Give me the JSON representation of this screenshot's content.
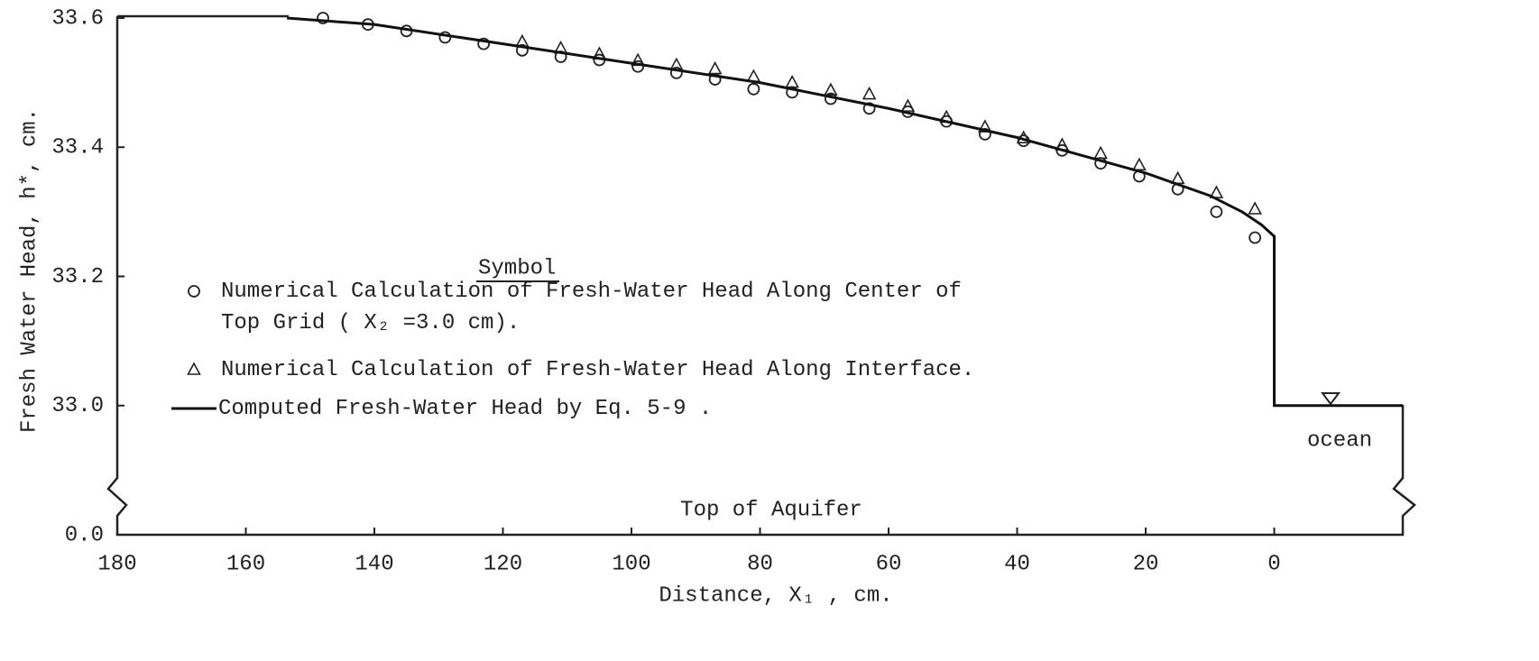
{
  "chart_data": {
    "type": "scatter",
    "x_label": "Distance, X₁ , cm.",
    "y_label": "Fresh Water Head, h*, cm.",
    "legend_title": "Symbol",
    "annotations": [
      "Top of Aquifer",
      "ocean"
    ],
    "xlim": [
      180,
      -20
    ],
    "xticks": [
      180,
      160,
      140,
      120,
      100,
      80,
      60,
      40,
      20,
      0
    ],
    "ylim": [
      32.8,
      33.6
    ],
    "yticks": [
      {
        "value": 33.0,
        "label": "33.0"
      },
      {
        "value": 33.2,
        "label": "33.2"
      },
      {
        "value": 33.4,
        "label": "33.4"
      },
      {
        "value": 33.6,
        "label": "33.6"
      }
    ],
    "y_break_tick": {
      "value": 0,
      "label": "0.0"
    },
    "series": [
      {
        "name": "Numerical Calculation of Fresh-Water Head Along Center of Top Grid ( X₂ =3.0 cm).",
        "marker": "circle",
        "color": "#222222",
        "x": [
          148,
          141,
          135,
          129,
          123,
          117,
          111,
          105,
          99,
          93,
          87,
          81,
          75,
          69,
          63,
          57,
          51,
          45,
          39,
          33,
          27,
          21,
          15,
          9,
          3
        ],
        "values": [
          33.6,
          33.59,
          33.58,
          33.57,
          33.56,
          33.55,
          33.54,
          33.535,
          33.525,
          33.515,
          33.505,
          33.49,
          33.485,
          33.475,
          33.46,
          33.455,
          33.44,
          33.42,
          33.41,
          33.395,
          33.375,
          33.355,
          33.335,
          33.3,
          33.26
        ]
      },
      {
        "name": "Numerical Calculation of Fresh-Water Head Along Interface.",
        "marker": "triangle",
        "color": "#222222",
        "x": [
          117,
          111,
          105,
          99,
          93,
          87,
          81,
          75,
          69,
          63,
          57,
          51,
          45,
          39,
          33,
          27,
          21,
          15,
          9,
          3
        ],
        "values": [
          33.563,
          33.553,
          33.544,
          33.534,
          33.527,
          33.521,
          33.509,
          33.5,
          33.488,
          33.482,
          33.463,
          33.446,
          33.431,
          33.414,
          33.403,
          33.39,
          33.372,
          33.351,
          33.329,
          33.304
        ]
      },
      {
        "name": "Computed Fresh-Water Head by Eq. 5-9 .",
        "marker": "line",
        "color": "#111111",
        "x": [
          153.6,
          140,
          120,
          100,
          80,
          60,
          40,
          20,
          10,
          5,
          2,
          0,
          0,
          -20
        ],
        "values": [
          33.6,
          33.59,
          33.56,
          33.53,
          33.5,
          33.46,
          33.415,
          33.36,
          33.325,
          33.3,
          33.28,
          33.262,
          33.0,
          33.0
        ]
      }
    ]
  }
}
